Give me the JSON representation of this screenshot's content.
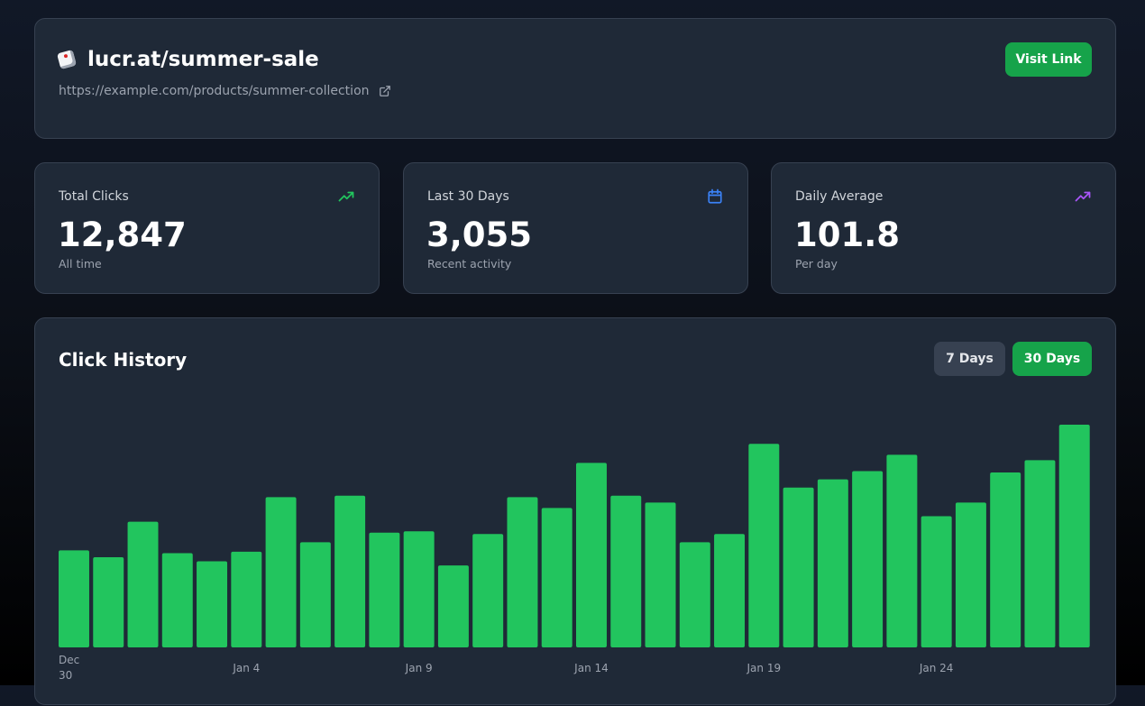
{
  "header": {
    "short_link": "lucr.at/summer-sale",
    "destination": "https://example.com/products/summer-collection",
    "visit_label": "Visit Link"
  },
  "stats": [
    {
      "label": "Total Clicks",
      "value": "12,847",
      "sub": "All time",
      "icon": "trending-up-icon",
      "color": "#22c55e"
    },
    {
      "label": "Last 30 Days",
      "value": "3,055",
      "sub": "Recent activity",
      "icon": "calendar-icon",
      "color": "#3b82f6"
    },
    {
      "label": "Daily Average",
      "value": "101.8",
      "sub": "Per day",
      "icon": "trending-up-icon",
      "color": "#a855f7"
    }
  ],
  "chart_data": {
    "type": "bar",
    "title": "Click History",
    "toggle": [
      "7 Days",
      "30 Days"
    ],
    "selected": "30 Days",
    "bar_color": "#22c55e",
    "x_tick_labels": [
      {
        "index": 0,
        "label": "Dec 30"
      },
      {
        "index": 5,
        "label": "Jan 4"
      },
      {
        "index": 10,
        "label": "Jan 9"
      },
      {
        "index": 15,
        "label": "Jan 14"
      },
      {
        "index": 20,
        "label": "Jan 19"
      },
      {
        "index": 25,
        "label": "Jan 24"
      }
    ],
    "values": [
      71,
      66,
      92,
      69,
      63,
      70,
      110,
      77,
      111,
      84,
      85,
      60,
      83,
      110,
      102,
      135,
      111,
      106,
      77,
      83,
      149,
      117,
      123,
      129,
      141,
      96,
      106,
      128,
      137,
      163
    ]
  }
}
